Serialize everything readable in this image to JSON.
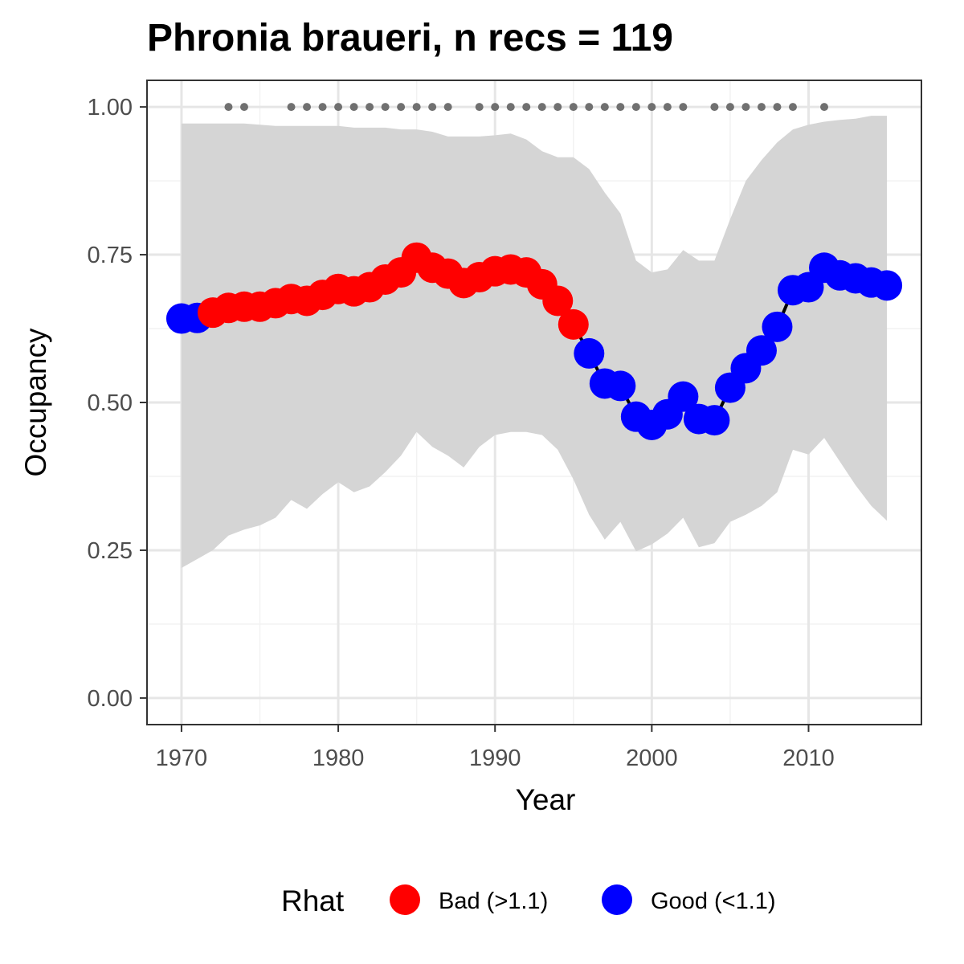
{
  "chart_data": {
    "type": "line",
    "title": "Phronia braueri, n recs = 119",
    "xlabel": "Year",
    "ylabel": "Occupancy",
    "xlim": [
      1967.8,
      2017.2
    ],
    "ylim": [
      -0.045,
      1.045
    ],
    "x_ticks": [
      1970,
      1980,
      1990,
      2000,
      2010
    ],
    "x_tick_labels": [
      "1970",
      "1980",
      "1990",
      "2000",
      "2010"
    ],
    "y_ticks": [
      0,
      0.25,
      0.5,
      0.75,
      1
    ],
    "y_tick_labels": [
      "0.00",
      "0.25",
      "0.50",
      "0.75",
      "1.00"
    ],
    "grid": true,
    "x": [
      1970,
      1971,
      1972,
      1973,
      1974,
      1975,
      1976,
      1977,
      1978,
      1979,
      1980,
      1981,
      1982,
      1983,
      1984,
      1985,
      1986,
      1987,
      1988,
      1989,
      1990,
      1991,
      1992,
      1993,
      1994,
      1995,
      1996,
      1997,
      1998,
      1999,
      2000,
      2001,
      2002,
      2003,
      2004,
      2005,
      2006,
      2007,
      2008,
      2009,
      2010,
      2011,
      2012,
      2013,
      2014,
      2015
    ],
    "series": [
      {
        "name": "Occupancy",
        "values": [
          0.642,
          0.643,
          0.652,
          0.66,
          0.662,
          0.662,
          0.668,
          0.675,
          0.672,
          0.682,
          0.692,
          0.688,
          0.695,
          0.708,
          0.72,
          0.745,
          0.728,
          0.718,
          0.702,
          0.712,
          0.722,
          0.725,
          0.72,
          0.7,
          0.672,
          0.632,
          0.583,
          0.532,
          0.528,
          0.476,
          0.462,
          0.48,
          0.51,
          0.472,
          0.47,
          0.525,
          0.558,
          0.588,
          0.628,
          0.69,
          0.695,
          0.728,
          0.715,
          0.71,
          0.703,
          0.698
        ],
        "rhat": [
          "Good",
          "Good",
          "Bad",
          "Bad",
          "Bad",
          "Bad",
          "Bad",
          "Bad",
          "Bad",
          "Bad",
          "Bad",
          "Bad",
          "Bad",
          "Bad",
          "Bad",
          "Bad",
          "Bad",
          "Bad",
          "Bad",
          "Bad",
          "Bad",
          "Bad",
          "Bad",
          "Bad",
          "Bad",
          "Bad",
          "Good",
          "Good",
          "Good",
          "Good",
          "Good",
          "Good",
          "Good",
          "Good",
          "Good",
          "Good",
          "Good",
          "Good",
          "Good",
          "Good",
          "Good",
          "Good",
          "Good",
          "Good",
          "Good",
          "Good"
        ],
        "lower": [
          0.22,
          0.235,
          0.25,
          0.275,
          0.285,
          0.292,
          0.305,
          0.335,
          0.32,
          0.345,
          0.365,
          0.348,
          0.358,
          0.382,
          0.41,
          0.45,
          0.425,
          0.41,
          0.39,
          0.425,
          0.445,
          0.45,
          0.45,
          0.445,
          0.42,
          0.37,
          0.31,
          0.268,
          0.298,
          0.248,
          0.26,
          0.278,
          0.305,
          0.255,
          0.262,
          0.298,
          0.31,
          0.325,
          0.348,
          0.42,
          0.412,
          0.44,
          0.4,
          0.36,
          0.325,
          0.3
        ],
        "upper": [
          0.972,
          0.972,
          0.972,
          0.972,
          0.972,
          0.97,
          0.968,
          0.968,
          0.968,
          0.968,
          0.968,
          0.965,
          0.965,
          0.965,
          0.962,
          0.962,
          0.958,
          0.95,
          0.95,
          0.95,
          0.952,
          0.955,
          0.945,
          0.925,
          0.915,
          0.915,
          0.895,
          0.855,
          0.82,
          0.74,
          0.72,
          0.725,
          0.758,
          0.74,
          0.74,
          0.81,
          0.875,
          0.91,
          0.94,
          0.962,
          0.97,
          0.975,
          0.978,
          0.98,
          0.985,
          0.985
        ]
      }
    ],
    "detection_years": [
      1973,
      1974,
      1977,
      1978,
      1979,
      1980,
      1981,
      1982,
      1983,
      1984,
      1985,
      1986,
      1987,
      1989,
      1990,
      1991,
      1992,
      1993,
      1994,
      1995,
      1996,
      1997,
      1998,
      1999,
      2000,
      2001,
      2002,
      2004,
      2005,
      2006,
      2007,
      2008,
      2009,
      2011
    ],
    "detection_value": 1.0,
    "legend": {
      "position": "bottom",
      "title": "Rhat",
      "items": [
        {
          "label": "Bad (>1.1)",
          "color": "#ff0000"
        },
        {
          "label": "Good (<1.1)",
          "color": "#0000ff"
        }
      ]
    },
    "colors": {
      "ribbon": "#d5d5d5",
      "line": "#000000",
      "detection": "#707070",
      "bad": "#ff0000",
      "good": "#0000ff",
      "grid_major": "#e6e6e6",
      "grid_minor": "#f2f2f2",
      "panel_border": "#333333"
    }
  }
}
